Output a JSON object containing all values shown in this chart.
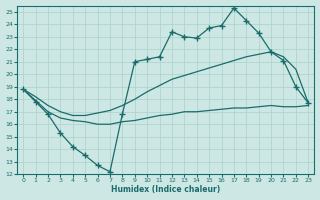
{
  "xlabel": "Humidex (Indice chaleur)",
  "bg_color": "#cde8e4",
  "grid_color": "#b0d4cf",
  "line_color": "#1a6b6b",
  "xlim": [
    -0.5,
    23.5
  ],
  "ylim": [
    12,
    25.5
  ],
  "yticks": [
    12,
    13,
    14,
    15,
    16,
    17,
    18,
    19,
    20,
    21,
    22,
    23,
    24,
    25
  ],
  "xticks": [
    0,
    1,
    2,
    3,
    4,
    5,
    6,
    7,
    8,
    9,
    10,
    11,
    12,
    13,
    14,
    15,
    16,
    17,
    18,
    19,
    20,
    21,
    22,
    23
  ],
  "series1_x": [
    0,
    1,
    2,
    3,
    4,
    5,
    6,
    7,
    8,
    9,
    10,
    11,
    12,
    13,
    14,
    15,
    16,
    17,
    18,
    19,
    20,
    21,
    22,
    23
  ],
  "series1_y": [
    18.8,
    17.8,
    16.8,
    15.3,
    14.2,
    13.5,
    12.7,
    12.2,
    16.8,
    21.0,
    21.2,
    21.4,
    23.4,
    23.0,
    22.9,
    23.7,
    23.9,
    25.3,
    24.3,
    23.3,
    21.8,
    21.1,
    19.0,
    17.7
  ],
  "series2_x": [
    0,
    2,
    3,
    4,
    5,
    6,
    7,
    8,
    9,
    10,
    11,
    12,
    13,
    14,
    15,
    16,
    17,
    18,
    19,
    20,
    21,
    22,
    23
  ],
  "series2_y": [
    18.8,
    17.0,
    16.5,
    16.3,
    16.2,
    16.0,
    16.0,
    16.2,
    16.3,
    16.5,
    16.7,
    16.8,
    17.0,
    17.0,
    17.1,
    17.2,
    17.3,
    17.3,
    17.4,
    17.5,
    17.4,
    17.4,
    17.5
  ],
  "series3_x": [
    0,
    1,
    2,
    3,
    4,
    5,
    6,
    7,
    8,
    9,
    10,
    11,
    12,
    13,
    14,
    15,
    16,
    17,
    18,
    19,
    20,
    21,
    22,
    23
  ],
  "series3_y": [
    18.8,
    18.2,
    17.5,
    17.0,
    16.7,
    16.7,
    16.9,
    17.1,
    17.5,
    18.0,
    18.6,
    19.1,
    19.6,
    19.9,
    20.2,
    20.5,
    20.8,
    21.1,
    21.4,
    21.6,
    21.8,
    21.4,
    20.4,
    17.7
  ]
}
